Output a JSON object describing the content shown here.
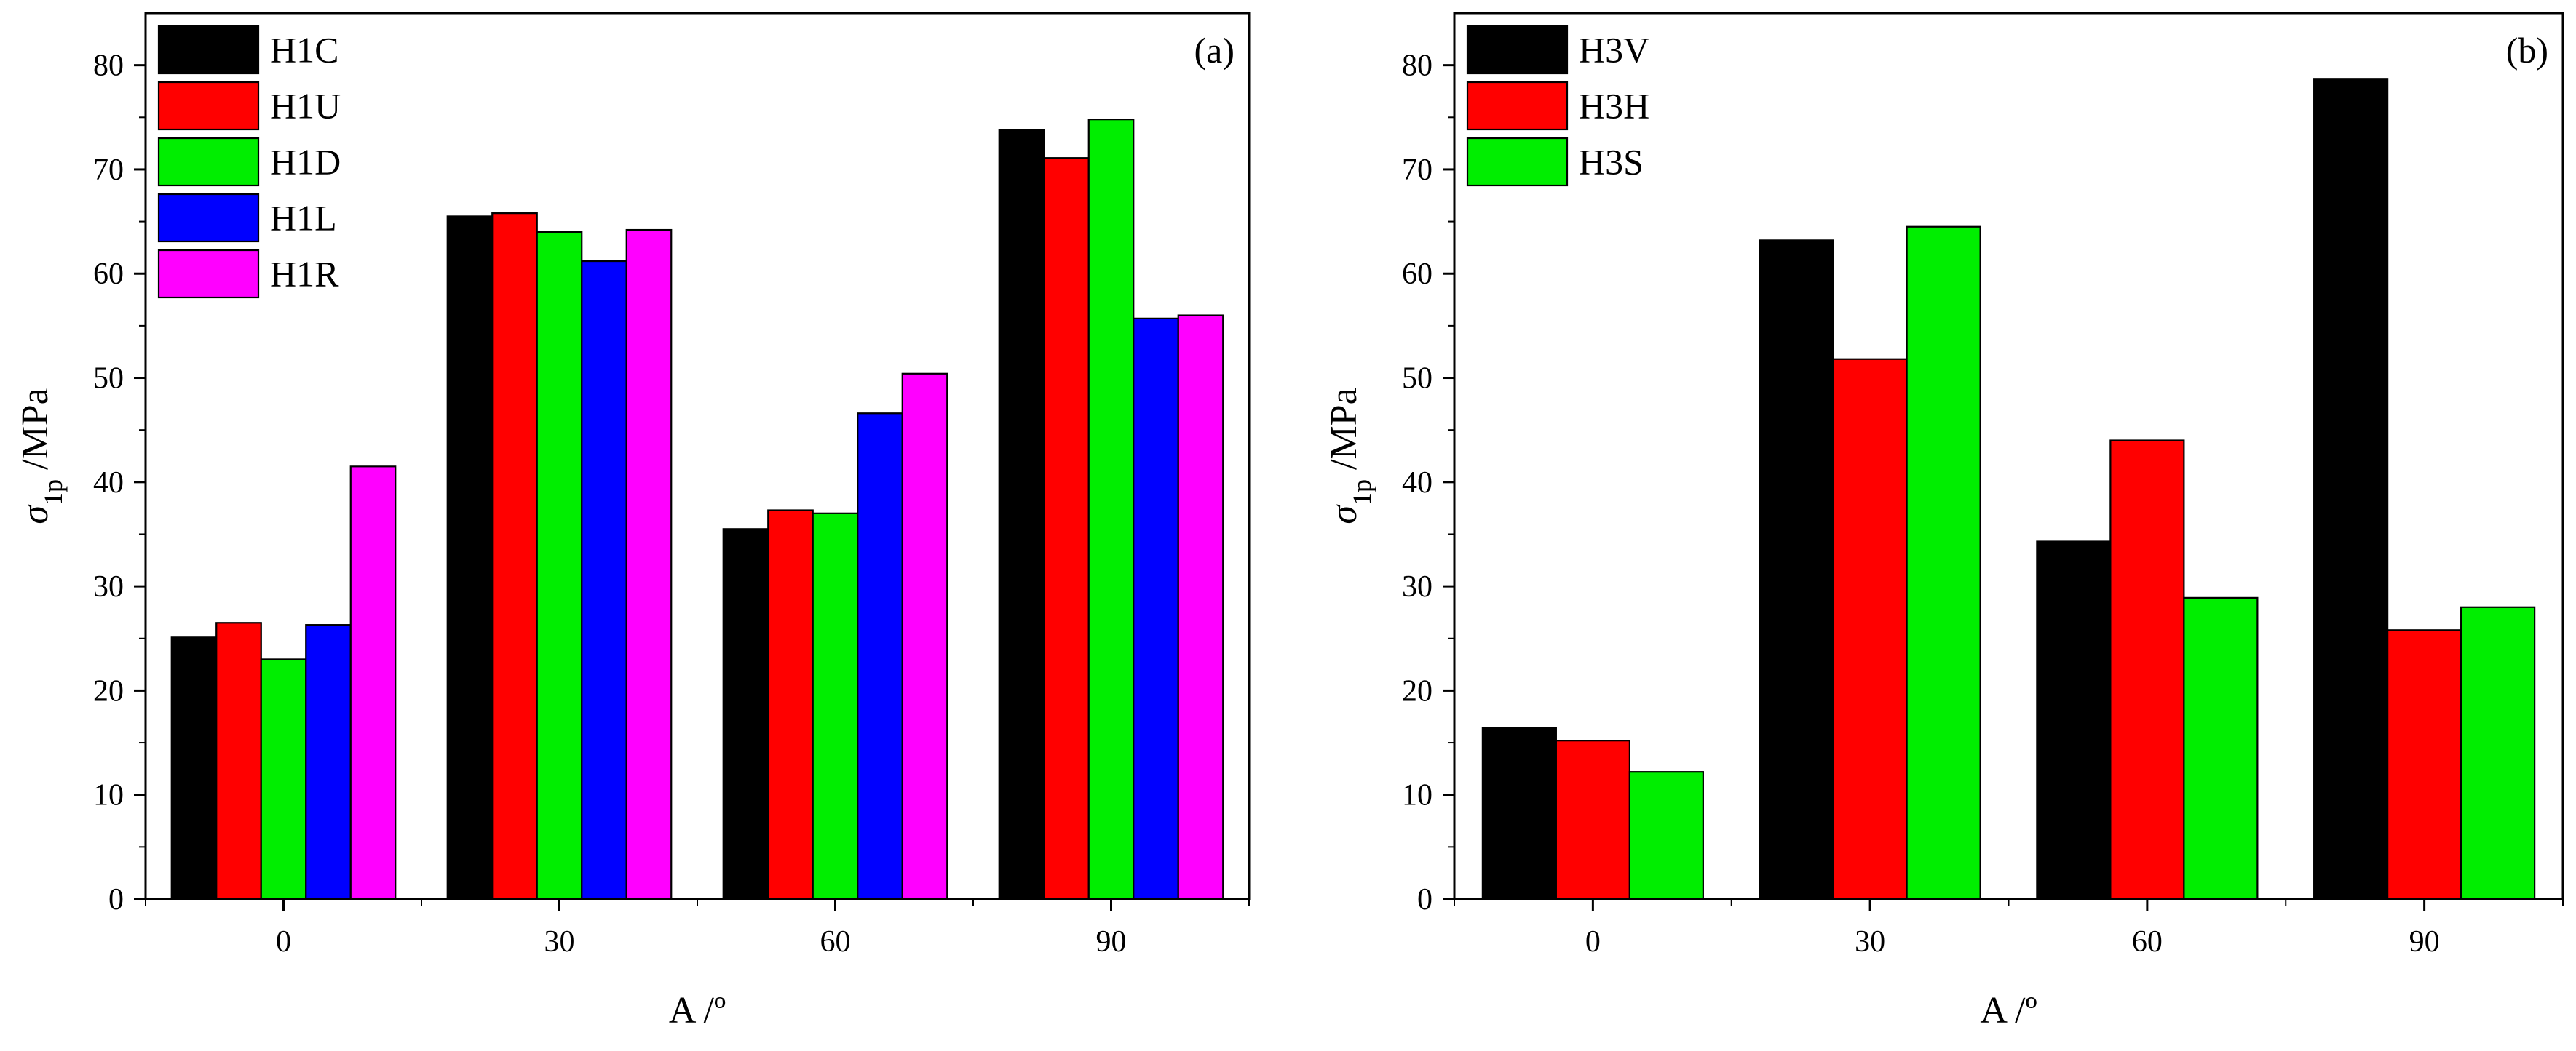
{
  "colors": {
    "H1C": "#000000",
    "H1U": "#ff0000",
    "H1D": "#00ee00",
    "H1L": "#0000ff",
    "H1R": "#ff00ff",
    "H3V": "#000000",
    "H3H": "#ff0000",
    "H3S": "#00ee00"
  },
  "chart_data": [
    {
      "type": "bar",
      "panel_label": "(a)",
      "categories": [
        "0",
        "30",
        "60",
        "90"
      ],
      "series": [
        {
          "name": "H1C",
          "values": [
            25.1,
            65.5,
            35.5,
            73.8
          ]
        },
        {
          "name": "H1U",
          "values": [
            26.5,
            65.8,
            37.3,
            71.1
          ]
        },
        {
          "name": "H1D",
          "values": [
            23.0,
            64.0,
            37.0,
            74.8
          ]
        },
        {
          "name": "H1L",
          "values": [
            26.3,
            61.2,
            46.6,
            55.7
          ]
        },
        {
          "name": "H1R",
          "values": [
            41.5,
            64.2,
            50.4,
            56.0
          ]
        }
      ],
      "ylabel_symbol": "σ",
      "ylabel_subscript": "1p",
      "ylabel_unit": " /MPa",
      "xlabel": "A /º",
      "ylim": [
        0,
        85
      ],
      "yticks": [
        0,
        10,
        20,
        30,
        40,
        50,
        60,
        70,
        80
      ],
      "legend_position": "top-left"
    },
    {
      "type": "bar",
      "panel_label": "(b)",
      "categories": [
        "0",
        "30",
        "60",
        "90"
      ],
      "series": [
        {
          "name": "H3V",
          "values": [
            16.4,
            63.2,
            34.3,
            78.7
          ]
        },
        {
          "name": "H3H",
          "values": [
            15.2,
            51.8,
            44.0,
            25.8
          ]
        },
        {
          "name": "H3S",
          "values": [
            12.2,
            64.5,
            28.9,
            28.0
          ]
        }
      ],
      "ylabel_symbol": "σ",
      "ylabel_subscript": "1p",
      "ylabel_unit": " /MPa",
      "xlabel": "A /º",
      "ylim": [
        0,
        85
      ],
      "yticks": [
        0,
        10,
        20,
        30,
        40,
        50,
        60,
        70,
        80
      ],
      "legend_position": "top-left"
    }
  ]
}
